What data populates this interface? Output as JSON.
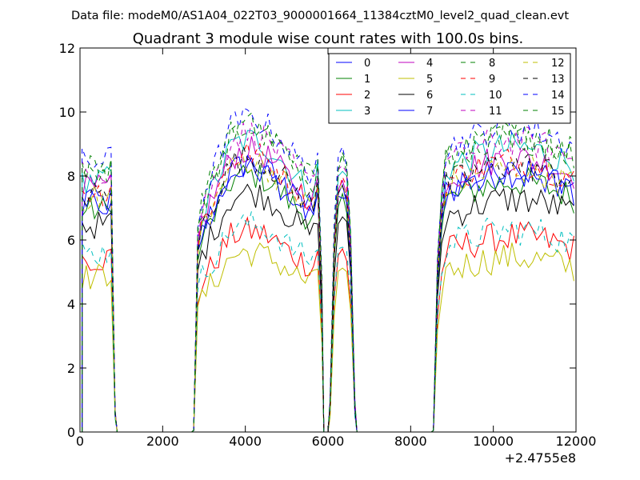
{
  "chart_data": {
    "type": "line",
    "suptitle": "Data file: modeM0/AS1A04_022T03_9000001664_11384cztM0_level2_quad_clean.evt",
    "title": "Quadrant 3 module wise count rates with 100.0s bins.",
    "xlabel": "",
    "ylabel": "",
    "x_offset_label": "+2.4755e8",
    "xlim": [
      0,
      12000
    ],
    "ylim": [
      0,
      12
    ],
    "x_ticks": [
      0,
      2000,
      4000,
      6000,
      8000,
      10000,
      12000
    ],
    "x_tick_labels": [
      "0",
      "2000",
      "4000",
      "6000",
      "8000",
      "10000",
      "12000"
    ],
    "y_ticks": [
      0,
      2,
      4,
      6,
      8,
      10,
      12
    ],
    "y_tick_labels": [
      "0",
      "2",
      "4",
      "6",
      "8",
      "10",
      "12"
    ],
    "legend_position": "top-right",
    "bin_size_s": 100,
    "bins": [
      {
        "from": 50,
        "to": 850,
        "step": 100
      },
      {
        "from": 2750,
        "to": 5850,
        "step": 100
      },
      {
        "from": 6050,
        "to": 6650,
        "step": 100
      },
      {
        "from": 8550,
        "to": 11950,
        "step": 100
      }
    ],
    "gaps": [
      [
        850,
        2750
      ],
      [
        5850,
        6050
      ],
      [
        6650,
        8550
      ]
    ],
    "series": [
      {
        "name": "0",
        "color": "#0000ff",
        "dash": "solid",
        "level": 7.6
      },
      {
        "name": "1",
        "color": "#008000",
        "dash": "solid",
        "level": 7.3
      },
      {
        "name": "2",
        "color": "#ff0000",
        "dash": "solid",
        "level": 5.7
      },
      {
        "name": "3",
        "color": "#00bfbf",
        "dash": "solid",
        "level": 8.3
      },
      {
        "name": "4",
        "color": "#bf00bf",
        "dash": "solid",
        "level": 8.0
      },
      {
        "name": "5",
        "color": "#bfbf00",
        "dash": "solid",
        "level": 5.1
      },
      {
        "name": "6",
        "color": "#000000",
        "dash": "solid",
        "level": 6.8
      },
      {
        "name": "7",
        "color": "#0000ff",
        "dash": "solid",
        "level": 7.5
      },
      {
        "name": "8",
        "color": "#008000",
        "dash": "dashed",
        "level": 8.6
      },
      {
        "name": "9",
        "color": "#ff0000",
        "dash": "dashed",
        "level": 7.9
      },
      {
        "name": "10",
        "color": "#00bfbf",
        "dash": "dashed",
        "level": 5.9
      },
      {
        "name": "11",
        "color": "#bf00bf",
        "dash": "dashed",
        "level": 8.5
      },
      {
        "name": "12",
        "color": "#bfbf00",
        "dash": "dashed",
        "level": 7.7
      },
      {
        "name": "13",
        "color": "#000000",
        "dash": "dashed",
        "level": 7.8
      },
      {
        "name": "14",
        "color": "#0000ff",
        "dash": "dashed",
        "level": 8.9
      },
      {
        "name": "15",
        "color": "#008000",
        "dash": "dashed",
        "level": 8.7
      }
    ]
  }
}
